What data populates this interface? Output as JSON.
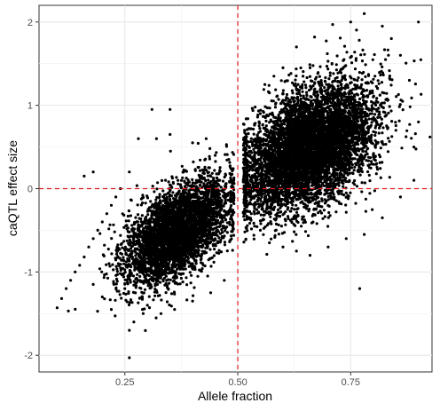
{
  "chart_data": {
    "type": "scatter",
    "title": "",
    "xlabel": "Allele fraction",
    "ylabel": "caQTL effect size",
    "xlim": [
      0.06,
      0.93
    ],
    "ylim": [
      -2.2,
      2.2
    ],
    "x_ticks": [
      0.25,
      0.5,
      0.75
    ],
    "x_tick_labels": [
      "0.25",
      "0.50",
      "0.75"
    ],
    "y_ticks": [
      -2,
      -1,
      0,
      1,
      2
    ],
    "y_tick_labels": [
      "-2",
      "-1",
      "0",
      "1",
      "2"
    ],
    "grid": true,
    "legend": "none",
    "reference_lines": [
      {
        "orientation": "vertical",
        "value": 0.5,
        "style": "dashed",
        "color": "#e41a1c"
      },
      {
        "orientation": "horizontal",
        "value": 0,
        "style": "dashed",
        "color": "#e41a1c"
      }
    ],
    "series": [
      {
        "clusters_center_x": [
          0.38,
          0.66
        ],
        "points": [
          [
            0.1,
            -1.43
          ],
          [
            0.11,
            -1.32
          ],
          [
            0.12,
            -1.2
          ],
          [
            0.13,
            -1.1
          ],
          [
            0.14,
            -1.0
          ],
          [
            0.15,
            -0.92
          ],
          [
            0.16,
            -0.82
          ],
          [
            0.17,
            -0.7
          ],
          [
            0.18,
            -0.6
          ],
          [
            0.19,
            -0.5
          ],
          [
            0.2,
            -0.4
          ],
          [
            0.21,
            -0.3
          ],
          [
            0.22,
            -0.2
          ],
          [
            0.23,
            -0.1
          ],
          [
            0.24,
            0.0
          ],
          [
            0.16,
            0.15
          ],
          [
            0.18,
            0.2
          ],
          [
            0.26,
            -2.03
          ],
          [
            0.26,
            0.2
          ],
          [
            0.26,
            -1.7
          ],
          [
            0.31,
            0.95
          ],
          [
            0.35,
            0.95
          ],
          [
            0.3,
            -1.4
          ],
          [
            0.28,
            0.6
          ],
          [
            0.32,
            0.6
          ],
          [
            0.35,
            0.65
          ],
          [
            0.4,
            0.55
          ],
          [
            0.43,
            0.6
          ],
          [
            0.45,
            0.4
          ],
          [
            0.48,
            0.35
          ],
          [
            0.47,
            -1.1
          ],
          [
            0.44,
            -1.25
          ],
          [
            0.4,
            -1.35
          ],
          [
            0.36,
            -1.45
          ],
          [
            0.33,
            -1.5
          ],
          [
            0.27,
            -1.6
          ],
          [
            0.22,
            -1.45
          ],
          [
            0.2,
            -1.3
          ],
          [
            0.18,
            -1.15
          ],
          [
            0.25,
            -1.2
          ],
          [
            0.3,
            -1.1
          ],
          [
            0.35,
            -1.0
          ],
          [
            0.4,
            -0.9
          ],
          [
            0.45,
            -0.6
          ],
          [
            0.48,
            -0.3
          ],
          [
            0.48,
            -0.05
          ],
          [
            0.46,
            0.1
          ],
          [
            0.42,
            0.15
          ],
          [
            0.38,
            0.2
          ],
          [
            0.34,
            0.1
          ],
          [
            0.55,
            -0.5
          ],
          [
            0.57,
            -0.65
          ],
          [
            0.6,
            -0.7
          ],
          [
            0.63,
            -0.75
          ],
          [
            0.66,
            -0.8
          ],
          [
            0.7,
            -0.7
          ],
          [
            0.74,
            -0.6
          ],
          [
            0.78,
            -0.55
          ],
          [
            0.82,
            -0.35
          ],
          [
            0.86,
            -0.1
          ],
          [
            0.89,
            0.1
          ],
          [
            0.89,
            0.5
          ],
          [
            0.9,
            0.8
          ],
          [
            0.88,
            1.3
          ],
          [
            0.86,
            1.6
          ],
          [
            0.84,
            1.8
          ],
          [
            0.82,
            1.95
          ],
          [
            0.78,
            2.1
          ],
          [
            0.75,
            2.0
          ],
          [
            0.71,
            1.97
          ],
          [
            0.67,
            1.82
          ],
          [
            0.63,
            1.7
          ],
          [
            0.6,
            1.45
          ],
          [
            0.57,
            1.15
          ],
          [
            0.55,
            0.9
          ],
          [
            0.53,
            0.6
          ],
          [
            0.52,
            0.3
          ],
          [
            0.52,
            0.0
          ],
          [
            0.53,
            -0.3
          ],
          [
            0.77,
            -1.2
          ],
          [
            0.56,
            1.25
          ],
          [
            0.58,
            1.35
          ],
          [
            0.61,
            1.0
          ],
          [
            0.66,
            1.45
          ],
          [
            0.9,
            2.0
          ],
          [
            0.85,
            0.7
          ],
          [
            0.8,
            1.1
          ],
          [
            0.73,
            1.3
          ],
          [
            0.69,
            1.1
          ],
          [
            0.64,
            0.9
          ]
        ]
      }
    ]
  }
}
